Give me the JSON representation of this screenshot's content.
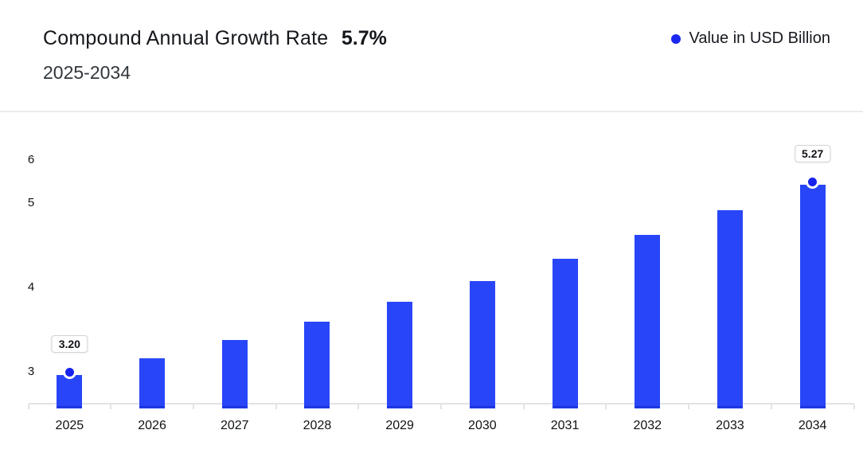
{
  "header": {
    "title": "Compound Annual Growth Rate",
    "cagr_value": "5.7%",
    "period": "2025-2034"
  },
  "legend": {
    "label": "Value in USD Billion"
  },
  "colors": {
    "bar": "#2846F8",
    "bar_bottom_stripe": "#1C33D9",
    "marker_dot": "#1723EC",
    "legend_dot": "#1B27EF",
    "axis_line": "#E2E3E5",
    "divider": "#EBEBED",
    "label_box_border": "#D0D2D5"
  },
  "chart_data": {
    "type": "bar",
    "title": "Compound Annual Growth Rate 5.7%",
    "subtitle": "2025-2034",
    "categories": [
      "2025",
      "2026",
      "2027",
      "2028",
      "2029",
      "2030",
      "2031",
      "2032",
      "2033",
      "2034"
    ],
    "series": [
      {
        "name": "Value in USD Billion",
        "values": [
          3.2,
          3.38,
          3.58,
          3.78,
          3.99,
          4.22,
          4.46,
          4.72,
          4.99,
          5.27
        ]
      }
    ],
    "point_labels": [
      {
        "category": "2025",
        "label": "3.20"
      },
      {
        "category": "2034",
        "label": "5.27"
      }
    ],
    "yticks": [
      "3",
      "4",
      "5",
      "6"
    ],
    "xlabel": "",
    "ylabel": "",
    "ylim": [
      2.83,
      6
    ],
    "grid": false,
    "legend_position": "top-right"
  }
}
